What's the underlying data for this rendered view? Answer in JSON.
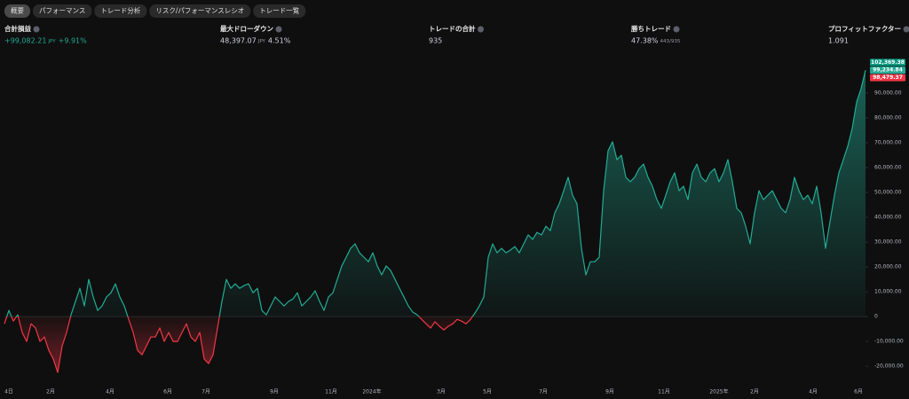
{
  "tabs": [
    "概要",
    "パフォーマンス",
    "トレード分析",
    "リスク/パフォーマンスレシオ",
    "トレード一覧"
  ],
  "stats": [
    {
      "label": "合計損益",
      "value": "+99,082.21",
      "unit": "JPY",
      "extra": "+9.91%"
    },
    {
      "label": "最大ドローダウン",
      "value": "48,397.07",
      "unit": "JPY",
      "extra": "4.51%"
    },
    {
      "label": "トレードの合計",
      "value": "935"
    },
    {
      "label": "勝ちトレード",
      "value": "47.38%",
      "extra": "443/935"
    },
    {
      "label": "プロフィットファクター",
      "value": "1.091"
    }
  ],
  "chart_data": {
    "type": "area",
    "color_positive": "#22ab94",
    "color_negative": "#f23645",
    "values": [
      -2900,
      2500,
      -1800,
      700,
      -6400,
      -10000,
      -2900,
      -4600,
      -10000,
      -8200,
      -13600,
      -17100,
      -22500,
      -11800,
      -6400,
      700,
      6100,
      11400,
      4300,
      15000,
      7900,
      2500,
      4300,
      7900,
      9600,
      13200,
      7900,
      4300,
      -1100,
      -6400,
      -13600,
      -15400,
      -11800,
      -8200,
      -8200,
      -4600,
      -10000,
      -6400,
      -10000,
      -10000,
      -6400,
      -2900,
      -8200,
      -10000,
      -6400,
      -17100,
      -18900,
      -15400,
      -4600,
      6100,
      15000,
      11400,
      13200,
      11400,
      12500,
      13200,
      9600,
      11400,
      2500,
      700,
      4300,
      7900,
      6100,
      4300,
      6100,
      7100,
      9600,
      4300,
      6100,
      7900,
      10400,
      6100,
      2500,
      7900,
      9600,
      15000,
      20400,
      23900,
      27500,
      29300,
      25700,
      23900,
      22100,
      25700,
      20400,
      16800,
      20400,
      18600,
      15000,
      11400,
      7900,
      4300,
      1800,
      700,
      -1100,
      -2900,
      -4600,
      -2100,
      -3900,
      -5400,
      -3900,
      -2900,
      -1100,
      -1800,
      -2900,
      -1100,
      1400,
      4300,
      7900,
      23900,
      29300,
      25700,
      27500,
      25700,
      26800,
      28200,
      25700,
      29300,
      32900,
      31100,
      33900,
      32900,
      36400,
      34600,
      41800,
      45400,
      50700,
      56100,
      48900,
      45400,
      27500,
      16800,
      22100,
      22100,
      23900,
      50700,
      66800,
      70400,
      63200,
      65000,
      56100,
      54300,
      56100,
      59600,
      61400,
      56100,
      52500,
      47100,
      43600,
      48900,
      54300,
      57900,
      50700,
      52500,
      47100,
      57900,
      61400,
      56100,
      54300,
      57900,
      59600,
      54300,
      57900,
      63200,
      54300,
      43600,
      41800,
      36400,
      29300,
      41800,
      50700,
      47100,
      48900,
      50700,
      47100,
      43600,
      41800,
      47100,
      56100,
      50700,
      47100,
      48900,
      45400,
      52500,
      41800,
      27500,
      38200,
      48900,
      57900,
      63200,
      68600,
      75700,
      86400,
      91800,
      99200
    ],
    "xlim": [
      0,
      194
    ],
    "xticks": [
      {
        "value": 1,
        "label": "4日"
      },
      {
        "value": 10.4,
        "label": "2月"
      },
      {
        "value": 23.8,
        "label": "4月"
      },
      {
        "value": 36.8,
        "label": "6月"
      },
      {
        "value": 45.4,
        "label": "7月"
      },
      {
        "value": 60.8,
        "label": "9月"
      },
      {
        "value": 73.6,
        "label": "11月"
      },
      {
        "value": 82.8,
        "label": "2024年"
      },
      {
        "value": 98.4,
        "label": "3月"
      },
      {
        "value": 108.8,
        "label": "5月"
      },
      {
        "value": 121.4,
        "label": "7月"
      },
      {
        "value": 136.4,
        "label": "9月"
      },
      {
        "value": 148.6,
        "label": "11月"
      },
      {
        "value": 161,
        "label": "2025年"
      },
      {
        "value": 169,
        "label": "2月"
      },
      {
        "value": 182.2,
        "label": "4月"
      },
      {
        "value": 192.4,
        "label": "6月"
      }
    ],
    "ylim": [
      -29600,
      103200
    ],
    "yticks": [
      {
        "value": -20000,
        "label": "-20,000.00"
      },
      {
        "value": -10000,
        "label": "-10,000.00"
      },
      0,
      {
        "value": 10000,
        "label": "10,000.00"
      },
      {
        "value": 20000,
        "label": "20,000.00"
      },
      {
        "value": 30000,
        "label": "30,000.00"
      },
      {
        "value": 40000,
        "label": "40,000.00"
      },
      {
        "value": 50000,
        "label": "50,000.00"
      },
      {
        "value": 60000,
        "label": "60,000.00"
      },
      {
        "value": 70000,
        "label": "70,000.00"
      },
      {
        "value": 80000,
        "label": "80,000.00"
      },
      {
        "value": 90000,
        "label": "90,000.00"
      }
    ],
    "price_labels": [
      {
        "value": 102369.38,
        "label": "102,369.38",
        "color": "#089981"
      },
      {
        "value": 99234.84,
        "label": "99,234.84",
        "color": "#22ab94"
      },
      {
        "value": 98479.37,
        "label": "98,479.37",
        "color": "#f23645"
      }
    ]
  }
}
